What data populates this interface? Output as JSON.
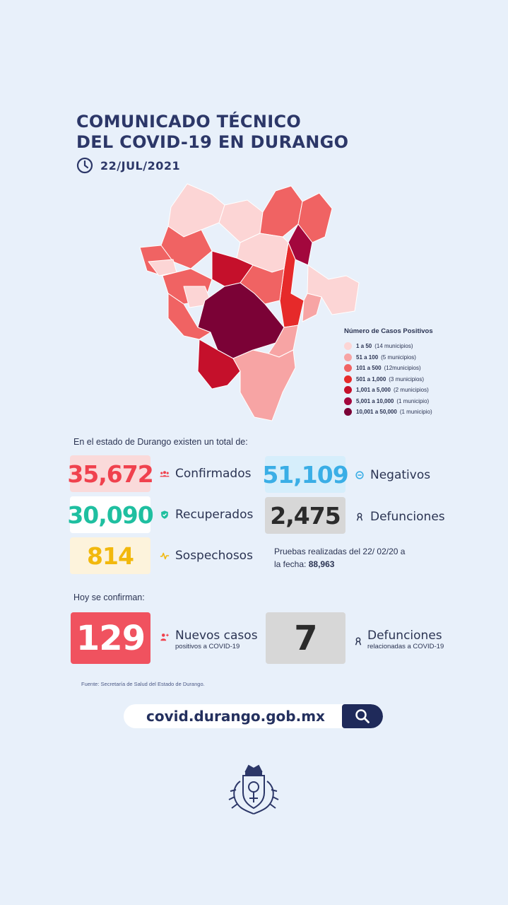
{
  "header": {
    "title_line1": "COMUNICADO TÉCNICO",
    "title_line2": "DEL COVID-19 EN DURANGO",
    "date": "22/JUL/2021",
    "clock_icon": "clock-icon"
  },
  "legend": {
    "title": "Número de Casos Positivos",
    "items": [
      {
        "range": "1 a 50",
        "count": "(14 municipios)",
        "color": "#fcd5d5"
      },
      {
        "range": "51 a 100",
        "count": "(5 municipios)",
        "color": "#f7a4a4"
      },
      {
        "range": "101 a 500",
        "count": "(12municipios)",
        "color": "#f06363"
      },
      {
        "range": "501 a 1,000",
        "count": "(3 municipios)",
        "color": "#e62a2a"
      },
      {
        "range": "1,001 a 5,000",
        "count": "(2 municipios)",
        "color": "#c5102b"
      },
      {
        "range": "5,001 a 10,000",
        "count": "(1 municipio)",
        "color": "#a3073d"
      },
      {
        "range": "10,001 a 50,000",
        "count": "(1 municipio)",
        "color": "#7b0236"
      }
    ]
  },
  "summary": {
    "intro": "En el estado de Durango existen un total de:",
    "confirmados": {
      "value": "35,672",
      "label": "Confirmados",
      "color": "#f0414d",
      "bg": "#fadada"
    },
    "negativos": {
      "value": "51,109",
      "label": "Negativos",
      "color": "#3aaee6",
      "bg": "#d6eefb"
    },
    "recuperados": {
      "value": "30,090",
      "label": "Recuperados",
      "color": "#1fbfa0",
      "bg": "#ffffff"
    },
    "defunciones": {
      "value": "2,475",
      "label": "Defunciones",
      "color": "#2b2b2b",
      "bg": "#d7d7d7"
    },
    "sospechosos": {
      "value": "814",
      "label": "Sospechosos",
      "color": "#f2b80c",
      "bg": "#fdf3dc"
    },
    "pruebas_line1": "Pruebas realizadas del 22/ 02/20 a",
    "pruebas_line2_prefix": "la fecha:",
    "pruebas_total": "88,963"
  },
  "today": {
    "intro": "Hoy se confirman:",
    "nuevos": {
      "value": "129",
      "label": "Nuevos casos",
      "sub": "positivos a COVID-19"
    },
    "defunciones": {
      "value": "7",
      "label": "Defunciones",
      "sub": "relacionadas a COVID-19"
    }
  },
  "fuente": "Fuente: Secretaría de Salud del Estado de Durango.",
  "url": {
    "text": "covid.durango.gob.mx",
    "icon": "search-icon"
  },
  "footer": {
    "seal_icon": "durango-seal-icon"
  }
}
